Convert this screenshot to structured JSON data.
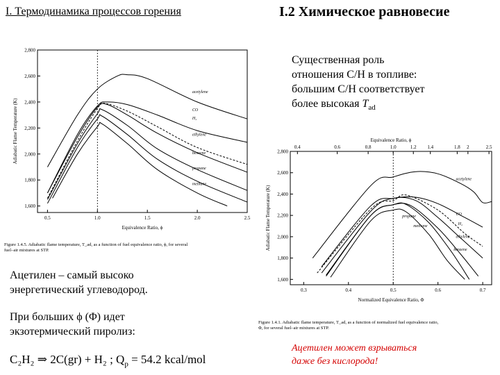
{
  "header": {
    "left_title": "I. Термодинамика процессов горения",
    "right_title": "I.2 Химическое равновесие"
  },
  "description": {
    "line1": "Существенная роль",
    "line2": "отношения C/H в топливе:",
    "line3": "большим C/H соответствует",
    "line4_prefix": "более высокая ",
    "line4_symbol": "T",
    "line4_sub": "ad"
  },
  "paragraphs": {
    "p1_line1": "Ацетилен – самый высоко",
    "p1_line2": "энергетический углеводород.",
    "p2_line1": "При больших ϕ (Φ) идет",
    "p2_line2": "экзотермический пиролиз:"
  },
  "formula": {
    "text": "C₂H₂ ⇒ 2C(gr) + H₂ ;   Q",
    "sub": "p",
    "rest": " = 54.2 kcal/mol"
  },
  "warning": {
    "line1": "Ацетилен может взрываться",
    "line2": "даже без кислорода!"
  },
  "chart_left": {
    "ylabel": "Adiabatic Flame Temperature (K)",
    "xlabel": "Equivalence Ratio, ϕ",
    "yticks": [
      "2,800",
      "2,600",
      "2,400",
      "2,200",
      "2,000",
      "1,800",
      "1,600"
    ],
    "xticks": [
      "0.5",
      "1.0",
      "1.5",
      "2.0",
      "2.5"
    ],
    "caption_line1": "Figure 1.4.5.  Adiabatic flame temperature, T_ad, as a function of fuel equivalence ratio, ϕ, for several",
    "caption_line2": "fuel–air mixtures at STP.",
    "labels": [
      "acetylene",
      "CO",
      "H₂",
      "ethylene",
      "benzene",
      "propane",
      "methane"
    ]
  },
  "chart_right": {
    "ylabel": "Adiabatic Flame Temperature (K)",
    "xlabel": "Normalized Equivalence Ratio, Φ",
    "top_axis_label": "Equivalence Ratio, ϕ",
    "yticks": [
      "2,800",
      "2,600",
      "2,400",
      "2,200",
      "2,000",
      "1,800",
      "1,600"
    ],
    "xticks": [
      "0.3",
      "0.4",
      "0.5",
      "0.6",
      "0.7"
    ],
    "top_ticks": [
      "0.4",
      "0.6",
      "0.8",
      "1.0",
      "1.2",
      "1.4",
      "1.8",
      "2",
      "2.5"
    ],
    "caption_line1": "Figure 1.4.1.  Adiabatic flame temperature, T_ad, as a function of normalized fuel equivalence ratio,",
    "caption_line2": "Φ, for several fuel–air mixtures at STP.",
    "labels": [
      "acetylene",
      "CO",
      "H₂",
      "propane",
      "methane",
      "ethylene",
      "benzene"
    ]
  },
  "chart_data": [
    {
      "type": "line",
      "title": "",
      "xlabel": "Equivalence Ratio, ϕ",
      "ylabel": "Adiabatic Flame Temperature (K)",
      "xlim": [
        0.4,
        2.5
      ],
      "ylim": [
        1550,
        2800
      ],
      "series": [
        {
          "name": "acetylene",
          "x": [
            0.5,
            0.8,
            1.0,
            1.2,
            1.3,
            1.5,
            2.0,
            2.5
          ],
          "y": [
            1900,
            2300,
            2500,
            2600,
            2610,
            2580,
            2400,
            2270
          ]
        },
        {
          "name": "CO",
          "x": [
            0.5,
            0.8,
            1.0,
            1.1,
            1.3,
            1.6,
            2.0,
            2.5
          ],
          "y": [
            1700,
            2150,
            2370,
            2400,
            2380,
            2300,
            2180,
            2090
          ]
        },
        {
          "name": "H₂",
          "x": [
            0.5,
            0.8,
            1.0,
            1.07,
            1.3,
            1.6,
            2.0,
            2.5
          ],
          "y": [
            1660,
            2100,
            2350,
            2390,
            2330,
            2210,
            2050,
            1920
          ]
        },
        {
          "name": "ethylene",
          "x": [
            0.5,
            0.8,
            1.0,
            1.1,
            1.3,
            1.6,
            2.0,
            2.5
          ],
          "y": [
            1700,
            2130,
            2360,
            2380,
            2300,
            2160,
            2010,
            1860
          ]
        },
        {
          "name": "benzene",
          "x": [
            0.5,
            0.8,
            1.0,
            1.05,
            1.3,
            1.6,
            2.0,
            2.5
          ],
          "y": [
            1650,
            2080,
            2310,
            2340,
            2220,
            2040,
            1880,
            1720
          ]
        },
        {
          "name": "propane",
          "x": [
            0.5,
            0.8,
            1.0,
            1.05,
            1.3,
            1.6,
            2.0,
            2.5
          ],
          "y": [
            1620,
            2050,
            2270,
            2290,
            2150,
            1960,
            1790,
            1630
          ]
        },
        {
          "name": "methane",
          "x": [
            0.55,
            0.8,
            1.0,
            1.05,
            1.3,
            1.6,
            2.0,
            2.3
          ],
          "y": [
            1660,
            2000,
            2210,
            2230,
            2080,
            1880,
            1700,
            1600
          ]
        }
      ]
    },
    {
      "type": "line",
      "title": "",
      "xlabel": "Normalized Equivalence Ratio, Φ",
      "ylabel": "Adiabatic Flame Temperature (K)",
      "xlim": [
        0.27,
        0.72
      ],
      "ylim": [
        1550,
        2800
      ],
      "series": [
        {
          "name": "acetylene",
          "x": [
            0.32,
            0.45,
            0.5,
            0.55,
            0.6,
            0.65,
            0.68,
            0.7,
            0.72
          ],
          "y": [
            1800,
            2480,
            2560,
            2610,
            2590,
            2500,
            2420,
            2320,
            2330
          ]
        },
        {
          "name": "CO",
          "x": [
            0.34,
            0.45,
            0.5,
            0.55,
            0.6,
            0.66,
            0.7
          ],
          "y": [
            1720,
            2290,
            2360,
            2370,
            2310,
            2180,
            2090
          ]
        },
        {
          "name": "H₂",
          "x": [
            0.33,
            0.45,
            0.5,
            0.53,
            0.6,
            0.66,
            0.7
          ],
          "y": [
            1660,
            2260,
            2340,
            2390,
            2250,
            2030,
            1910
          ]
        },
        {
          "name": "propane",
          "x": [
            0.35,
            0.45,
            0.5,
            0.53,
            0.58,
            0.63,
            0.67
          ],
          "y": [
            1640,
            2200,
            2300,
            2300,
            2130,
            1860,
            1600
          ]
        },
        {
          "name": "methane",
          "x": [
            0.36,
            0.45,
            0.5,
            0.53,
            0.58,
            0.62,
            0.66
          ],
          "y": [
            1620,
            2150,
            2250,
            2230,
            2020,
            1780,
            1600
          ]
        },
        {
          "name": "ethylene",
          "x": [
            0.34,
            0.45,
            0.5,
            0.55,
            0.6,
            0.65,
            0.7
          ],
          "y": [
            1660,
            2240,
            2360,
            2340,
            2180,
            1990,
            1800
          ]
        },
        {
          "name": "benzene",
          "x": [
            0.35,
            0.45,
            0.5,
            0.54,
            0.6,
            0.65,
            0.69
          ],
          "y": [
            1630,
            2200,
            2300,
            2290,
            2080,
            1840,
            1630
          ]
        }
      ]
    }
  ]
}
